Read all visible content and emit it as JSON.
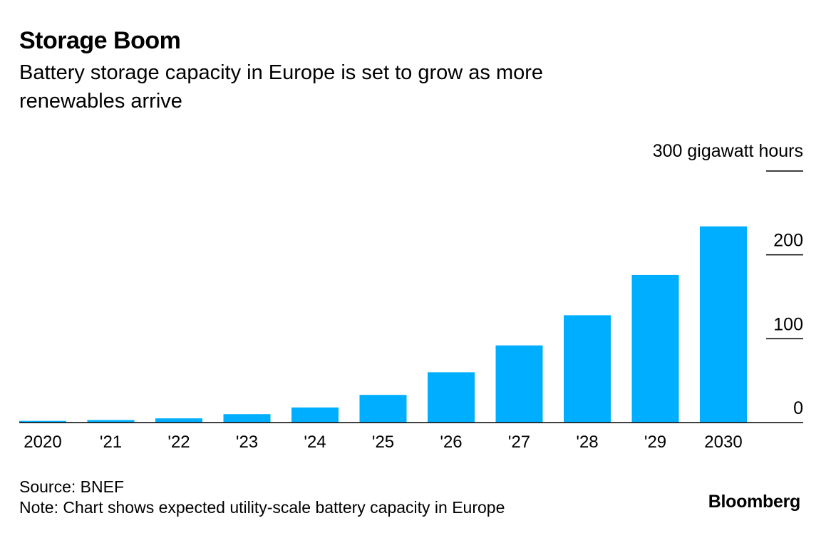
{
  "header": {
    "title": "Storage Boom",
    "subtitle": "Battery storage capacity in Europe is set to grow as more renewables arrive"
  },
  "footer": {
    "source": "Source: BNEF",
    "note": "Note: Chart shows expected utility-scale battery capacity in Europe",
    "brand": "Bloomberg"
  },
  "colors": {
    "bar": "#00AEFF",
    "axis": "#000000"
  },
  "chart_data": {
    "type": "bar",
    "categories": [
      "2020",
      "'21",
      "'22",
      "'23",
      "'24",
      "'25",
      "'26",
      "'27",
      "'28",
      "'29",
      "2030"
    ],
    "values": [
      2,
      3,
      5,
      10,
      18,
      33,
      60,
      92,
      128,
      176,
      234
    ],
    "unit_label": "300 gigawatt hours",
    "ylim": [
      0,
      300
    ],
    "yticks": [
      0,
      100,
      200,
      300
    ],
    "ytick_labels": [
      "0",
      "100",
      "200",
      "300 gigawatt hours"
    ],
    "axis_position": "right",
    "grid": false,
    "legend": "none"
  }
}
